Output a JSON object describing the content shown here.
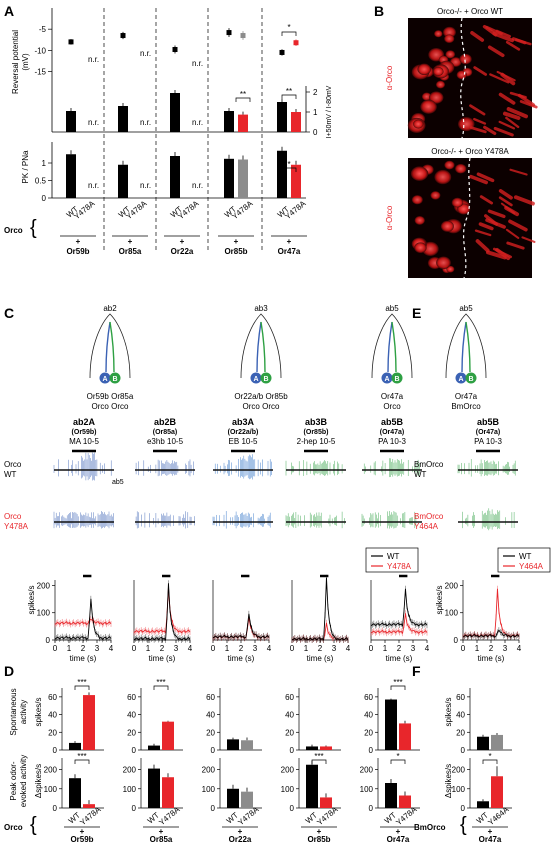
{
  "panels": {
    "A": "A",
    "B": "B",
    "C": "C",
    "D": "D",
    "E": "E",
    "F": "F"
  },
  "colors": {
    "wt": "#000000",
    "y478a": "#e8262b",
    "y478a_gray": "#8c8c8c",
    "ab2": "#3b62b4",
    "ab3": "#2b6fc6",
    "green": "#2ea043",
    "micro_red": "#e01818"
  },
  "panelA": {
    "top_ylabel_lines": [
      "Reversal potential",
      "(mV)"
    ],
    "top_ticks": [
      -5,
      -10,
      -15
    ],
    "right_ticks": [
      2,
      1,
      0
    ],
    "right_ylabel": "I+50mV / I-80mV",
    "bottom_ylabel": "PK / PNa",
    "bottom_ticks": [
      1,
      0.5,
      0
    ],
    "nr": "n.r.",
    "sig": [
      "*",
      "**",
      "**",
      "*"
    ],
    "orco_label": "Orco",
    "wt": "WT",
    "mut": "Y478A",
    "plus": "+",
    "receptors": [
      "Or59b",
      "Or85a",
      "Or22a",
      "Or85b",
      "Or47a"
    ]
  },
  "chart_data": [
    {
      "type": "scatter",
      "title": "",
      "ylabel": "Reversal potential (mV)",
      "ylim": [
        -17,
        0
      ],
      "categories": [
        "Or59b",
        "Or85a",
        "Or22a",
        "Or85b",
        "Or47a"
      ],
      "series": [
        {
          "name": "WT",
          "values": [
            -8,
            -6.5,
            -9.8,
            -5.8,
            -10.5
          ]
        },
        {
          "name": "Y478A",
          "values": [
            null,
            null,
            null,
            -6.5,
            -8.2
          ]
        }
      ]
    },
    {
      "type": "bar",
      "ylabel": "I+50mV / I-80mV",
      "ylim": [
        0,
        2.3
      ],
      "categories": [
        "Or59b",
        "Or85a",
        "Or22a",
        "Or85b",
        "Or47a"
      ],
      "series": [
        {
          "name": "WT",
          "values": [
            1.05,
            1.3,
            1.95,
            1.05,
            1.5
          ]
        },
        {
          "name": "Y478A",
          "values": [
            null,
            null,
            null,
            0.87,
            1.0
          ]
        }
      ]
    },
    {
      "type": "bar",
      "ylabel": "PK / PNa",
      "ylim": [
        0,
        1.6
      ],
      "categories": [
        "Or59b",
        "Or85a",
        "Or22a",
        "Or85b",
        "Or47a"
      ],
      "series": [
        {
          "name": "WT",
          "values": [
            1.25,
            0.95,
            1.2,
            1.12,
            1.35
          ]
        },
        {
          "name": "Y478A",
          "values": [
            null,
            null,
            null,
            1.1,
            0.95
          ]
        }
      ]
    },
    {
      "type": "bar",
      "ylabel": "Spontaneous activity (spikes/s)",
      "ylim": [
        0,
        70
      ],
      "categories": [
        "Or59b",
        "Or85a",
        "Or22a",
        "Or85b",
        "Or47a"
      ],
      "series": [
        {
          "name": "WT",
          "values": [
            8,
            5,
            12,
            4,
            57
          ]
        },
        {
          "name": "Y478A",
          "values": [
            62,
            32,
            11,
            4,
            30
          ]
        }
      ]
    },
    {
      "type": "bar",
      "ylabel": "Peak odor-evoked activity (Δspikes/s)",
      "ylim": [
        0,
        260
      ],
      "categories": [
        "Or59b",
        "Or85a",
        "Or22a",
        "Or85b",
        "Or47a"
      ],
      "series": [
        {
          "name": "WT",
          "values": [
            155,
            205,
            100,
            225,
            130
          ]
        },
        {
          "name": "Y478A",
          "values": [
            20,
            160,
            85,
            55,
            65
          ]
        }
      ]
    },
    {
      "type": "bar",
      "ylabel": "spikes/s",
      "ylim": [
        0,
        70
      ],
      "categories": [
        "Or47a"
      ],
      "series": [
        {
          "name": "WT",
          "values": [
            15
          ]
        },
        {
          "name": "Y464A",
          "values": [
            17
          ]
        }
      ]
    },
    {
      "type": "bar",
      "ylabel": "Δspikes/s",
      "ylim": [
        0,
        260
      ],
      "categories": [
        "Or47a"
      ],
      "series": [
        {
          "name": "WT",
          "values": [
            35
          ]
        },
        {
          "name": "Y464A",
          "values": [
            165
          ]
        }
      ]
    }
  ],
  "panelB": {
    "top_label": "Orco-/- + Orco WT",
    "bottom_label": "Orco-/- + Orco Y478A",
    "stain": "α-Orco"
  },
  "panelC": {
    "sensilla": [
      {
        "name": "ab2",
        "neurons": "Or59b Or85a",
        "orco": "Orco Orco"
      },
      {
        "name": "ab3",
        "neurons": "Or22a/b Or85b",
        "orco": "Orco Orco"
      },
      {
        "name": "ab5",
        "neurons": "Or47a",
        "orco": "Orco"
      }
    ],
    "columns": [
      {
        "neuron": "ab2A",
        "or": "(Or59b)",
        "odor": "MA 10-5"
      },
      {
        "neuron": "ab2B",
        "or": "(Or85a)",
        "odor": "e3hb 10-5"
      },
      {
        "neuron": "ab3A",
        "or": "(Or22a/b)",
        "odor": "EB 10-5"
      },
      {
        "neuron": "ab3B",
        "or": "(Or85b)",
        "odor": "2-hep 10-5"
      },
      {
        "neuron": "ab5B",
        "or": "(Or47a)",
        "odor": "PA 10-3"
      }
    ],
    "row_wt": [
      "Orco",
      "WT"
    ],
    "row_mut": [
      "Orco",
      "Y478A"
    ],
    "ab5_note": "ab5",
    "legend": [
      "WT",
      "Y478A"
    ],
    "ylabel": "spikes/s",
    "xlabel": "time (s)",
    "yticks": [
      200,
      100,
      0
    ],
    "xticks": [
      0,
      1,
      2,
      3,
      4
    ]
  },
  "panelD": {
    "top_ylabel": [
      "Spontaneous",
      "activity"
    ],
    "top_unit": "spikes/s",
    "top_ticks": [
      60,
      40,
      20,
      0
    ],
    "bottom_ylabel": [
      "Peak odor-",
      "evoked activity"
    ],
    "bottom_unit": "Δspikes/s",
    "bottom_ticks": [
      200,
      100,
      0
    ],
    "sig_top": [
      "***",
      "***",
      "***"
    ],
    "sig_bottom": [
      "***",
      "***",
      "*"
    ],
    "orco_label": "Orco",
    "wt": "WT",
    "mut": "Y478A",
    "plus": "+",
    "receptors": [
      "Or59b",
      "Or85a",
      "Or22a",
      "Or85b",
      "Or47a"
    ]
  },
  "panelE": {
    "sensillum": "ab5",
    "neurons": "Or47a",
    "orco": "BmOrco",
    "neuron": "ab5B",
    "or": "(Or47a)",
    "odor": "PA 10-3",
    "row_wt": [
      "BmOrco",
      "WT"
    ],
    "row_mut": [
      "BmOrco",
      "Y464A"
    ],
    "legend": [
      "WT",
      "Y464A"
    ],
    "ylabel": "spikes/s",
    "xlabel": "time (s)",
    "yticks": [
      200,
      100,
      0
    ],
    "xticks": [
      0,
      1,
      2,
      3,
      4
    ]
  },
  "panelF": {
    "top_unit": "spikes/s",
    "top_ticks": [
      60,
      40,
      20,
      0
    ],
    "bottom_unit": "Δspikes/s",
    "bottom_ticks": [
      200,
      100,
      0
    ],
    "sig": "*",
    "bm_label": "BmOrco",
    "wt": "WT",
    "mut": "Y464A",
    "plus": "+",
    "receptor": "Or47a"
  }
}
